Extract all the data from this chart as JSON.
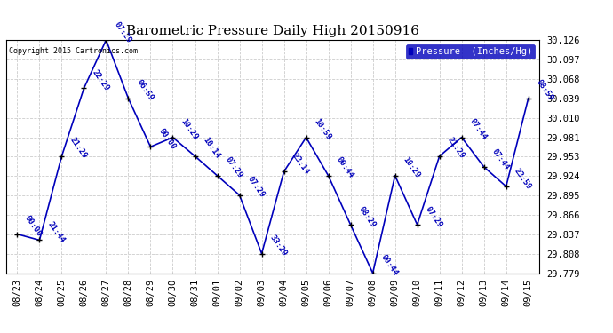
{
  "title": "Barometric Pressure Daily High 20150916",
  "copyright": "Copyright 2015 Cartronics.com",
  "legend_label": "Pressure  (Inches/Hg)",
  "background_color": "#ffffff",
  "plot_bg_color": "#ffffff",
  "line_color": "#0000bb",
  "marker_color": "#000000",
  "label_color": "#0000bb",
  "grid_color": "#cccccc",
  "ylim": [
    29.779,
    30.126
  ],
  "yticks": [
    29.779,
    29.808,
    29.837,
    29.866,
    29.895,
    29.924,
    29.953,
    29.981,
    30.01,
    30.039,
    30.068,
    30.097,
    30.126
  ],
  "data": [
    {
      "date": "08/23",
      "time": "00:00",
      "value": 29.837
    },
    {
      "date": "08/24",
      "time": "21:44",
      "value": 29.828
    },
    {
      "date": "08/25",
      "time": "21:29",
      "value": 29.953
    },
    {
      "date": "08/26",
      "time": "22:29",
      "value": 30.054
    },
    {
      "date": "08/27",
      "time": "07:29",
      "value": 30.126
    },
    {
      "date": "08/28",
      "time": "06:59",
      "value": 30.039
    },
    {
      "date": "08/29",
      "time": "00:00",
      "value": 29.967
    },
    {
      "date": "08/30",
      "time": "10:29",
      "value": 29.981
    },
    {
      "date": "08/31",
      "time": "10:14",
      "value": 29.953
    },
    {
      "date": "09/01",
      "time": "07:29",
      "value": 29.924
    },
    {
      "date": "09/02",
      "time": "07:29",
      "value": 29.895
    },
    {
      "date": "09/03",
      "time": "33:29",
      "value": 29.808
    },
    {
      "date": "09/04",
      "time": "23:14",
      "value": 29.93
    },
    {
      "date": "09/05",
      "time": "10:59",
      "value": 29.981
    },
    {
      "date": "09/06",
      "time": "00:44",
      "value": 29.924
    },
    {
      "date": "09/07",
      "time": "08:29",
      "value": 29.851
    },
    {
      "date": "09/08",
      "time": "00:44",
      "value": 29.779
    },
    {
      "date": "09/09",
      "time": "10:29",
      "value": 29.924
    },
    {
      "date": "09/10",
      "time": "07:29",
      "value": 29.851
    },
    {
      "date": "09/11",
      "time": "21:29",
      "value": 29.953
    },
    {
      "date": "09/12",
      "time": "07:44",
      "value": 29.981
    },
    {
      "date": "09/13",
      "time": "07:44",
      "value": 29.937
    },
    {
      "date": "09/14",
      "time": "23:59",
      "value": 29.908
    },
    {
      "date": "09/15",
      "time": "08:59",
      "value": 30.039
    }
  ]
}
